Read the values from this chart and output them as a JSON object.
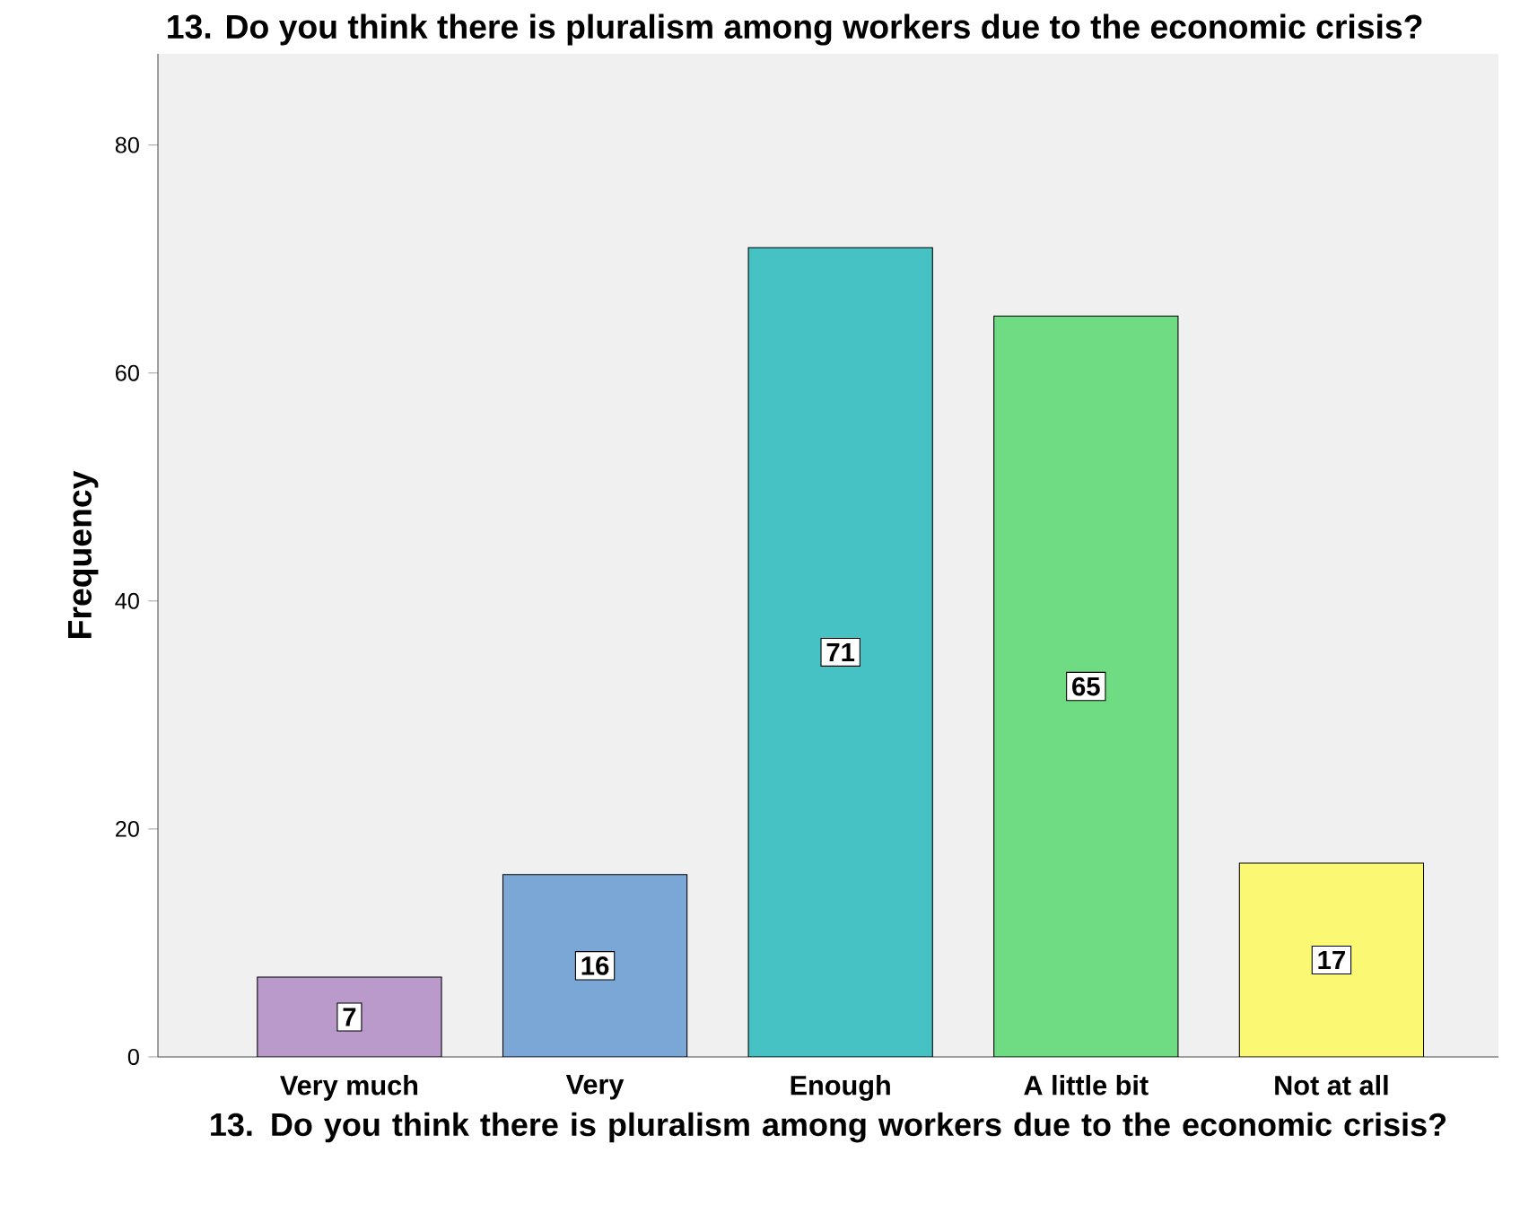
{
  "chart_data": {
    "type": "bar",
    "title": "13. Do you think there is pluralism among workers due to the economic crisis?",
    "xlabel": "13. Do you think there is pluralism among workers due to the economic crisis?",
    "ylabel": "Frequency",
    "categories": [
      "Very much",
      "Very",
      "Enough",
      "A little bit",
      "Not at all"
    ],
    "values": [
      7,
      16,
      71,
      65,
      17
    ],
    "colors": [
      "#b99acb",
      "#7ba7d7",
      "#47c2c4",
      "#6fdc83",
      "#fbf873"
    ],
    "ylim": [
      0,
      88
    ],
    "yticks": [
      0,
      20,
      40,
      60,
      80
    ],
    "data_labels": true,
    "grid": false
  }
}
